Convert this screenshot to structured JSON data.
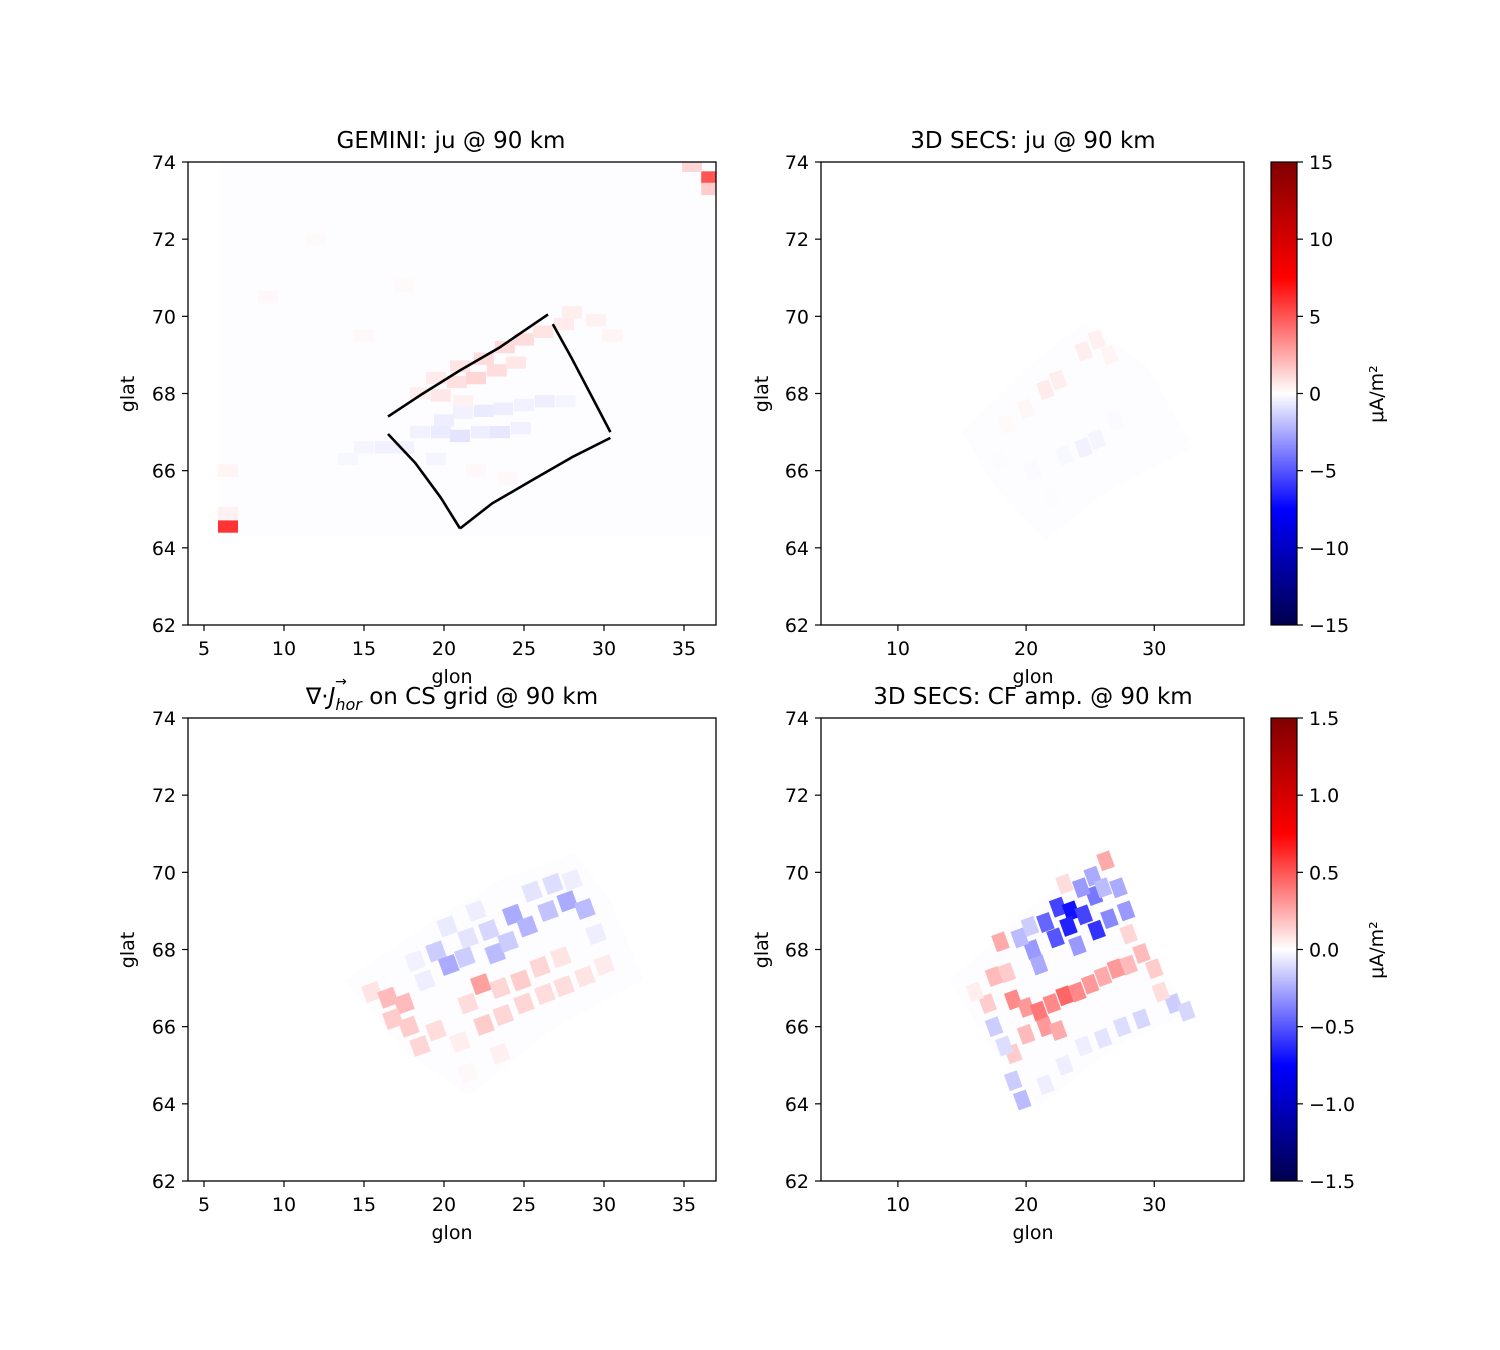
{
  "chart_data": [
    {
      "type": "heatmap",
      "title": "GEMINI: ju @ 90 km",
      "xlabel": "glon",
      "ylabel": "glat",
      "xlim": [
        4,
        37
      ],
      "ylim": [
        62,
        74
      ],
      "xticks": [
        "5",
        "10",
        "15",
        "20",
        "25",
        "30",
        "35"
      ],
      "yticks": [
        "62",
        "64",
        "66",
        "68",
        "70",
        "72",
        "74"
      ],
      "color_range": [
        -15,
        15
      ],
      "colormap": "seismic",
      "cells": [
        {
          "lon": 6.5,
          "lat": 64.55,
          "v": 6
        },
        {
          "lon": 6.5,
          "lat": 64.9,
          "v": 0.4
        },
        {
          "lon": 36.7,
          "lat": 73.6,
          "v": 5
        },
        {
          "lon": 36.7,
          "lat": 73.3,
          "v": 1.5
        },
        {
          "lon": 35.5,
          "lat": 73.9,
          "v": 1.2
        },
        {
          "lon": 6.5,
          "lat": 66.0,
          "v": 0.3
        },
        {
          "lon": 9.0,
          "lat": 70.5,
          "v": 0.2
        },
        {
          "lon": 12.0,
          "lat": 72.0,
          "v": 0.15
        },
        {
          "lon": 15.0,
          "lat": 69.5,
          "v": 0.2
        },
        {
          "lon": 17.5,
          "lat": 70.8,
          "v": 0.15
        },
        {
          "lon": 28.0,
          "lat": 70.1,
          "v": 0.5
        },
        {
          "lon": 29.5,
          "lat": 69.9,
          "v": 0.4
        },
        {
          "lon": 30.5,
          "lat": 69.5,
          "v": 0.3
        },
        {
          "lon": 21.0,
          "lat": 68.7,
          "v": 0.8
        },
        {
          "lon": 22.5,
          "lat": 68.9,
          "v": 1.0
        },
        {
          "lon": 23.8,
          "lat": 69.2,
          "v": 1.1
        },
        {
          "lon": 25.0,
          "lat": 69.4,
          "v": 1.0
        },
        {
          "lon": 26.2,
          "lat": 69.6,
          "v": 0.8
        },
        {
          "lon": 27.5,
          "lat": 69.8,
          "v": 0.6
        },
        {
          "lon": 19.5,
          "lat": 68.4,
          "v": 0.6
        },
        {
          "lon": 20.8,
          "lat": 68.3,
          "v": 0.9
        },
        {
          "lon": 22.0,
          "lat": 68.4,
          "v": 1.2
        },
        {
          "lon": 23.3,
          "lat": 68.6,
          "v": 1.0
        },
        {
          "lon": 24.5,
          "lat": 68.8,
          "v": 0.7
        },
        {
          "lon": 18.5,
          "lat": 68.0,
          "v": 0.5
        },
        {
          "lon": 19.8,
          "lat": 67.95,
          "v": 0.7
        },
        {
          "lon": 21.2,
          "lat": 67.8,
          "v": 0.4
        },
        {
          "lon": 20.0,
          "lat": 67.3,
          "v": -0.5
        },
        {
          "lon": 21.2,
          "lat": 67.5,
          "v": -0.4
        },
        {
          "lon": 22.5,
          "lat": 67.55,
          "v": -0.6
        },
        {
          "lon": 23.7,
          "lat": 67.6,
          "v": -0.5
        },
        {
          "lon": 25.0,
          "lat": 67.7,
          "v": -0.4
        },
        {
          "lon": 26.3,
          "lat": 67.8,
          "v": -0.5
        },
        {
          "lon": 27.6,
          "lat": 67.8,
          "v": -0.3
        },
        {
          "lon": 18.5,
          "lat": 67.0,
          "v": -0.4
        },
        {
          "lon": 19.8,
          "lat": 67.0,
          "v": -0.6
        },
        {
          "lon": 21.0,
          "lat": 66.9,
          "v": -0.8
        },
        {
          "lon": 22.3,
          "lat": 67.0,
          "v": -0.5
        },
        {
          "lon": 23.5,
          "lat": 67.0,
          "v": -0.7
        },
        {
          "lon": 24.8,
          "lat": 67.1,
          "v": -0.4
        },
        {
          "lon": 15.0,
          "lat": 66.6,
          "v": -0.3
        },
        {
          "lon": 16.3,
          "lat": 66.6,
          "v": -0.4
        },
        {
          "lon": 17.5,
          "lat": 66.6,
          "v": -0.4
        },
        {
          "lon": 14.0,
          "lat": 66.3,
          "v": -0.25
        },
        {
          "lon": 19.5,
          "lat": 66.3,
          "v": -0.3
        },
        {
          "lon": 22.0,
          "lat": 66.0,
          "v": 0.2
        },
        {
          "lon": 24.0,
          "lat": 65.8,
          "v": 0.2
        }
      ],
      "outline": {
        "top_edge": [
          [
            16.5,
            67.4
          ],
          [
            18.5,
            67.95
          ],
          [
            21.0,
            68.6
          ],
          [
            23.5,
            69.2
          ],
          [
            26.5,
            70.05
          ]
        ],
        "right_edge": [
          [
            26.8,
            69.8
          ],
          [
            28.0,
            68.9
          ],
          [
            29.2,
            67.95
          ],
          [
            30.4,
            67.0
          ]
        ],
        "bottom_edge": [
          [
            30.4,
            66.85
          ],
          [
            28.0,
            66.35
          ],
          [
            25.5,
            65.75
          ],
          [
            23.0,
            65.15
          ],
          [
            21.0,
            64.5
          ]
        ],
        "left_edge": [
          [
            21.0,
            64.5
          ],
          [
            19.8,
            65.3
          ],
          [
            18.2,
            66.2
          ],
          [
            16.5,
            66.95
          ]
        ]
      }
    },
    {
      "type": "heatmap",
      "title": "3D SECS: ju @ 90 km",
      "xlabel": "glon",
      "ylabel": "glat",
      "xlim": [
        4,
        37
      ],
      "ylim": [
        62,
        74
      ],
      "xticks": [
        "10",
        "20",
        "30"
      ],
      "yticks": [
        "62",
        "64",
        "66",
        "68",
        "70",
        "72",
        "74"
      ],
      "color_range": [
        -15,
        15
      ],
      "colormap": "seismic",
      "colorbar_label": "μA/m²",
      "colorbar_ticks": [
        "−15",
        "−10",
        "−5",
        "0",
        "5",
        "10",
        "15"
      ],
      "cells": [
        {
          "lon": 21.5,
          "lat": 68.1,
          "v": 0.6
        },
        {
          "lon": 22.5,
          "lat": 68.35,
          "v": 0.5
        },
        {
          "lon": 24.5,
          "lat": 69.1,
          "v": 0.5
        },
        {
          "lon": 25.5,
          "lat": 69.4,
          "v": 0.4
        },
        {
          "lon": 26.5,
          "lat": 69.0,
          "v": 0.3
        },
        {
          "lon": 20.0,
          "lat": 67.6,
          "v": 0.25
        },
        {
          "lon": 18.5,
          "lat": 67.2,
          "v": 0.15
        },
        {
          "lon": 24.5,
          "lat": 66.6,
          "v": -0.4
        },
        {
          "lon": 25.5,
          "lat": 66.8,
          "v": -0.3
        },
        {
          "lon": 23.0,
          "lat": 66.4,
          "v": -0.2
        },
        {
          "lon": 27.0,
          "lat": 67.3,
          "v": -0.15
        },
        {
          "lon": 20.5,
          "lat": 66.0,
          "v": -0.15
        },
        {
          "lon": 18.0,
          "lat": 66.3,
          "v": -0.1
        },
        {
          "lon": 22.0,
          "lat": 65.3,
          "v": -0.1
        }
      ],
      "footprint": [
        [
          15.0,
          67.0
        ],
        [
          20.5,
          68.8
        ],
        [
          24.5,
          69.85
        ],
        [
          29.5,
          68.7
        ],
        [
          33.0,
          66.6
        ],
        [
          26.5,
          65.5
        ],
        [
          21.5,
          64.2
        ],
        [
          17.5,
          65.6
        ]
      ]
    },
    {
      "type": "heatmap",
      "title": "∇·J⃗hor on CS grid @ 90 km",
      "title_parts": [
        "∇·",
        "J",
        "→",
        "hor",
        " on CS grid @ 90 km"
      ],
      "xlabel": "glon",
      "ylabel": "glat",
      "xlim": [
        4,
        37
      ],
      "ylim": [
        62,
        74
      ],
      "xticks": [
        "5",
        "10",
        "15",
        "20",
        "25",
        "30",
        "35"
      ],
      "yticks": [
        "62",
        "64",
        "66",
        "68",
        "70",
        "72",
        "74"
      ],
      "color_range": [
        -1.5,
        1.5
      ],
      "colormap": "seismic",
      "cells": [
        {
          "lon": 15.5,
          "lat": 66.9,
          "v": 0.08
        },
        {
          "lon": 16.5,
          "lat": 66.75,
          "v": 0.2
        },
        {
          "lon": 17.5,
          "lat": 66.6,
          "v": 0.2
        },
        {
          "lon": 16.8,
          "lat": 66.2,
          "v": 0.15
        },
        {
          "lon": 17.8,
          "lat": 66.0,
          "v": 0.15
        },
        {
          "lon": 18.5,
          "lat": 65.5,
          "v": 0.12
        },
        {
          "lon": 19.5,
          "lat": 65.9,
          "v": 0.1
        },
        {
          "lon": 21.0,
          "lat": 65.6,
          "v": 0.05
        },
        {
          "lon": 22.5,
          "lat": 66.05,
          "v": 0.15
        },
        {
          "lon": 23.7,
          "lat": 66.3,
          "v": 0.12
        },
        {
          "lon": 25.0,
          "lat": 66.6,
          "v": 0.12
        },
        {
          "lon": 26.3,
          "lat": 66.85,
          "v": 0.1
        },
        {
          "lon": 27.5,
          "lat": 67.05,
          "v": 0.1
        },
        {
          "lon": 28.8,
          "lat": 67.3,
          "v": 0.08
        },
        {
          "lon": 30.0,
          "lat": 67.6,
          "v": 0.06
        },
        {
          "lon": 21.5,
          "lat": 66.6,
          "v": 0.1
        },
        {
          "lon": 22.3,
          "lat": 67.1,
          "v": 0.28
        },
        {
          "lon": 23.5,
          "lat": 67.0,
          "v": 0.12
        },
        {
          "lon": 24.8,
          "lat": 67.2,
          "v": 0.15
        },
        {
          "lon": 26.0,
          "lat": 67.55,
          "v": 0.12
        },
        {
          "lon": 27.3,
          "lat": 67.8,
          "v": 0.08
        },
        {
          "lon": 18.8,
          "lat": 67.2,
          "v": -0.05
        },
        {
          "lon": 19.5,
          "lat": 67.95,
          "v": -0.15
        },
        {
          "lon": 20.3,
          "lat": 67.6,
          "v": -0.25
        },
        {
          "lon": 21.3,
          "lat": 67.8,
          "v": -0.15
        },
        {
          "lon": 21.5,
          "lat": 68.3,
          "v": -0.08
        },
        {
          "lon": 22.8,
          "lat": 68.5,
          "v": -0.12
        },
        {
          "lon": 23.2,
          "lat": 67.9,
          "v": -0.2
        },
        {
          "lon": 24.3,
          "lat": 68.9,
          "v": -0.25
        },
        {
          "lon": 25.2,
          "lat": 68.6,
          "v": -0.22
        },
        {
          "lon": 24.0,
          "lat": 68.2,
          "v": -0.15
        },
        {
          "lon": 26.5,
          "lat": 69.0,
          "v": -0.18
        },
        {
          "lon": 27.7,
          "lat": 69.25,
          "v": -0.25
        },
        {
          "lon": 28.8,
          "lat": 69.05,
          "v": -0.2
        },
        {
          "lon": 25.5,
          "lat": 69.5,
          "v": -0.08
        },
        {
          "lon": 26.8,
          "lat": 69.7,
          "v": -0.1
        },
        {
          "lon": 28.0,
          "lat": 69.8,
          "v": -0.05
        },
        {
          "lon": 22.0,
          "lat": 69.0,
          "v": -0.05
        },
        {
          "lon": 20.2,
          "lat": 68.6,
          "v": -0.06
        },
        {
          "lon": 18.2,
          "lat": 67.7,
          "v": -0.04
        },
        {
          "lon": 29.5,
          "lat": 68.4,
          "v": -0.05
        },
        {
          "lon": 23.5,
          "lat": 65.3,
          "v": 0.04
        },
        {
          "lon": 21.5,
          "lat": 64.8,
          "v": 0.02
        }
      ],
      "footprint": [
        [
          13.8,
          67.2
        ],
        [
          19.5,
          68.8
        ],
        [
          23.5,
          69.8
        ],
        [
          28.2,
          70.5
        ],
        [
          30.5,
          69.2
        ],
        [
          32.5,
          67.2
        ],
        [
          27.0,
          66.0
        ],
        [
          21.5,
          64.2
        ],
        [
          17.5,
          65.4
        ]
      ]
    },
    {
      "type": "heatmap",
      "title": "3D SECS: CF amp. @ 90 km",
      "xlabel": "glon",
      "ylabel": "glat",
      "xlim": [
        4,
        37
      ],
      "ylim": [
        62,
        74
      ],
      "xticks": [
        "10",
        "20",
        "30"
      ],
      "yticks": [
        "62",
        "64",
        "66",
        "68",
        "70",
        "72",
        "74"
      ],
      "color_range": [
        -1.5,
        1.5
      ],
      "colormap": "seismic",
      "colorbar_label": "μA/m²",
      "colorbar_ticks": [
        "−1.5",
        "−1.0",
        "−0.5",
        "0.0",
        "0.5",
        "1.0",
        "1.5"
      ],
      "cells": [
        {
          "lon": 21.5,
          "lat": 68.7,
          "v": -0.45
        },
        {
          "lon": 22.5,
          "lat": 69.1,
          "v": -0.55
        },
        {
          "lon": 23.5,
          "lat": 69.0,
          "v": -0.7
        },
        {
          "lon": 22.3,
          "lat": 68.3,
          "v": -0.5
        },
        {
          "lon": 23.3,
          "lat": 68.6,
          "v": -0.65
        },
        {
          "lon": 24.5,
          "lat": 68.9,
          "v": -0.55
        },
        {
          "lon": 25.3,
          "lat": 69.4,
          "v": -0.4
        },
        {
          "lon": 25.5,
          "lat": 68.5,
          "v": -0.6
        },
        {
          "lon": 26.5,
          "lat": 68.8,
          "v": -0.35
        },
        {
          "lon": 24.3,
          "lat": 69.6,
          "v": -0.3
        },
        {
          "lon": 25.2,
          "lat": 69.9,
          "v": -0.25
        },
        {
          "lon": 26.0,
          "lat": 69.6,
          "v": -0.2
        },
        {
          "lon": 27.2,
          "lat": 69.6,
          "v": -0.25
        },
        {
          "lon": 27.8,
          "lat": 69.0,
          "v": -0.3
        },
        {
          "lon": 20.5,
          "lat": 68.0,
          "v": -0.3
        },
        {
          "lon": 21.0,
          "lat": 67.6,
          "v": -0.25
        },
        {
          "lon": 19.5,
          "lat": 68.3,
          "v": -0.2
        },
        {
          "lon": 20.3,
          "lat": 68.6,
          "v": -0.15
        },
        {
          "lon": 24.0,
          "lat": 68.1,
          "v": -0.3
        },
        {
          "lon": 26.2,
          "lat": 70.3,
          "v": 0.25
        },
        {
          "lon": 23.0,
          "lat": 69.7,
          "v": 0.1
        },
        {
          "lon": 18.0,
          "lat": 68.2,
          "v": 0.25
        },
        {
          "lon": 17.5,
          "lat": 67.3,
          "v": 0.2
        },
        {
          "lon": 18.5,
          "lat": 67.4,
          "v": 0.15
        },
        {
          "lon": 19.0,
          "lat": 66.7,
          "v": 0.35
        },
        {
          "lon": 20.0,
          "lat": 66.5,
          "v": 0.3
        },
        {
          "lon": 21.0,
          "lat": 66.4,
          "v": 0.4
        },
        {
          "lon": 22.0,
          "lat": 66.6,
          "v": 0.35
        },
        {
          "lon": 23.0,
          "lat": 66.8,
          "v": 0.45
        },
        {
          "lon": 24.0,
          "lat": 66.9,
          "v": 0.35
        },
        {
          "lon": 25.0,
          "lat": 67.1,
          "v": 0.3
        },
        {
          "lon": 26.0,
          "lat": 67.3,
          "v": 0.25
        },
        {
          "lon": 27.0,
          "lat": 67.5,
          "v": 0.3
        },
        {
          "lon": 28.0,
          "lat": 67.6,
          "v": 0.2
        },
        {
          "lon": 21.5,
          "lat": 66.0,
          "v": 0.3
        },
        {
          "lon": 22.5,
          "lat": 65.9,
          "v": 0.25
        },
        {
          "lon": 20.0,
          "lat": 65.8,
          "v": 0.2
        },
        {
          "lon": 19.0,
          "lat": 65.3,
          "v": 0.15
        },
        {
          "lon": 17.0,
          "lat": 66.6,
          "v": 0.15
        },
        {
          "lon": 16.0,
          "lat": 66.9,
          "v": 0.05
        },
        {
          "lon": 17.5,
          "lat": 66.0,
          "v": -0.15
        },
        {
          "lon": 18.3,
          "lat": 65.5,
          "v": -0.1
        },
        {
          "lon": 19.0,
          "lat": 64.6,
          "v": -0.15
        },
        {
          "lon": 19.7,
          "lat": 64.1,
          "v": -0.2
        },
        {
          "lon": 24.5,
          "lat": 65.5,
          "v": -0.05
        },
        {
          "lon": 26.0,
          "lat": 65.7,
          "v": -0.08
        },
        {
          "lon": 27.5,
          "lat": 66.0,
          "v": -0.1
        },
        {
          "lon": 29.0,
          "lat": 66.2,
          "v": -0.12
        },
        {
          "lon": 31.5,
          "lat": 66.6,
          "v": -0.15
        },
        {
          "lon": 32.5,
          "lat": 66.4,
          "v": -0.12
        },
        {
          "lon": 30.5,
          "lat": 66.9,
          "v": 0.1
        },
        {
          "lon": 29.0,
          "lat": 67.9,
          "v": 0.2
        },
        {
          "lon": 30.0,
          "lat": 67.5,
          "v": 0.15
        },
        {
          "lon": 28.0,
          "lat": 68.4,
          "v": 0.12
        },
        {
          "lon": 21.5,
          "lat": 64.5,
          "v": -0.05
        },
        {
          "lon": 23.0,
          "lat": 65.0,
          "v": -0.05
        }
      ],
      "footprint": [
        [
          14.0,
          67.2
        ],
        [
          20.0,
          69.0
        ],
        [
          25.5,
          70.4
        ],
        [
          28.0,
          69.0
        ],
        [
          30.0,
          67.7
        ],
        [
          33.0,
          66.4
        ],
        [
          27.0,
          65.5
        ],
        [
          21.0,
          63.9
        ],
        [
          17.0,
          65.6
        ]
      ]
    }
  ]
}
